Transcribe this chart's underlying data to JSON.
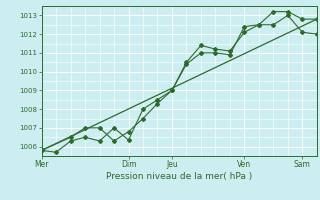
{
  "xlabel": "Pression niveau de la mer( hPa )",
  "bg_color": "#cceef0",
  "grid_color": "#ffffff",
  "line_color": "#2d6a2d",
  "ylim": [
    1005.5,
    1013.5
  ],
  "yticks": [
    1006,
    1007,
    1008,
    1009,
    1010,
    1011,
    1012,
    1013
  ],
  "x_day_labels": [
    "Mer",
    "Dim",
    "Jeu",
    "Ven",
    "Sam"
  ],
  "x_day_positions": [
    0,
    6,
    9,
    14,
    18
  ],
  "xlim": [
    0,
    19
  ],
  "line1_x": [
    0,
    1,
    2,
    3,
    4,
    5,
    6,
    7,
    8,
    9,
    10,
    11,
    12,
    13,
    14,
    15,
    16,
    17,
    18,
    19
  ],
  "line1_y": [
    1005.8,
    1005.7,
    1006.3,
    1006.5,
    1006.3,
    1007.0,
    1006.35,
    1008.0,
    1008.5,
    1009.0,
    1010.4,
    1011.0,
    1011.0,
    1010.9,
    1012.4,
    1012.5,
    1013.2,
    1013.2,
    1012.8,
    1012.8
  ],
  "line2_x": [
    0,
    2,
    3,
    4,
    5,
    6,
    7,
    8,
    9,
    10,
    11,
    12,
    13,
    14,
    15,
    16,
    17,
    18,
    19
  ],
  "line2_y": [
    1005.8,
    1006.5,
    1007.0,
    1007.0,
    1006.3,
    1006.8,
    1007.5,
    1008.3,
    1009.0,
    1010.5,
    1011.4,
    1011.2,
    1011.1,
    1012.1,
    1012.5,
    1012.5,
    1013.0,
    1012.1,
    1012.0
  ],
  "trend_x": [
    0,
    19
  ],
  "trend_y": [
    1005.8,
    1012.8
  ],
  "vline_positions": [
    0,
    6,
    9,
    14,
    18
  ],
  "minor_x_step": 1
}
